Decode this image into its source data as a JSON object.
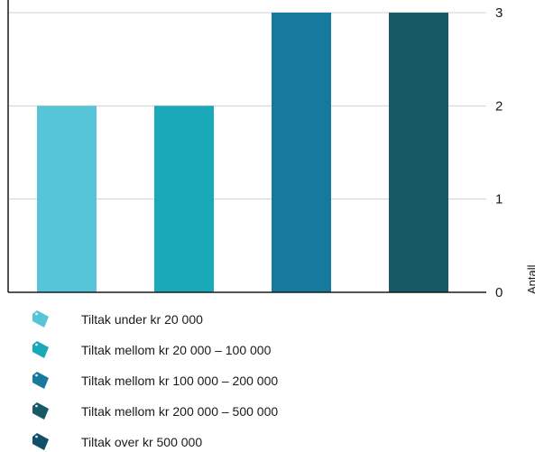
{
  "chart_data": {
    "type": "bar",
    "categories": [
      "Tiltak under kr 20 000",
      "Tiltak mellom kr 20 000 – 100 000",
      "Tiltak mellom kr 100 000 – 200 000",
      "Tiltak mellom kr 200 000 – 500 000",
      "Tiltak over kr 500 000"
    ],
    "values": [
      2,
      2,
      3,
      3,
      0
    ],
    "colors": [
      "#56c5d8",
      "#1aa9b9",
      "#157a9d",
      "#175a66",
      "#0f4f6a"
    ],
    "ylabel": "Antall",
    "ylim": [
      0,
      3
    ],
    "yticks": [
      "0",
      "1",
      "2",
      "3"
    ],
    "y_axis_position": "right",
    "grid": true,
    "legend_position": "bottom"
  },
  "legend": {
    "items": [
      {
        "label": "Tiltak under kr 20 000",
        "icon": "price-tag-icon",
        "color": "#56c5d8"
      },
      {
        "label": "Tiltak mellom kr 20 000 – 100 000",
        "icon": "price-tag-icon",
        "color": "#1aa9b9"
      },
      {
        "label": "Tiltak mellom kr 100 000 – 200 000",
        "icon": "price-tag-icon",
        "color": "#157a9d"
      },
      {
        "label": "Tiltak mellom kr 200 000 – 500 000",
        "icon": "price-tag-icon",
        "color": "#175a66"
      },
      {
        "label": "Tiltak over kr 500 000",
        "icon": "price-tag-icon",
        "color": "#0f4f6a"
      }
    ]
  }
}
